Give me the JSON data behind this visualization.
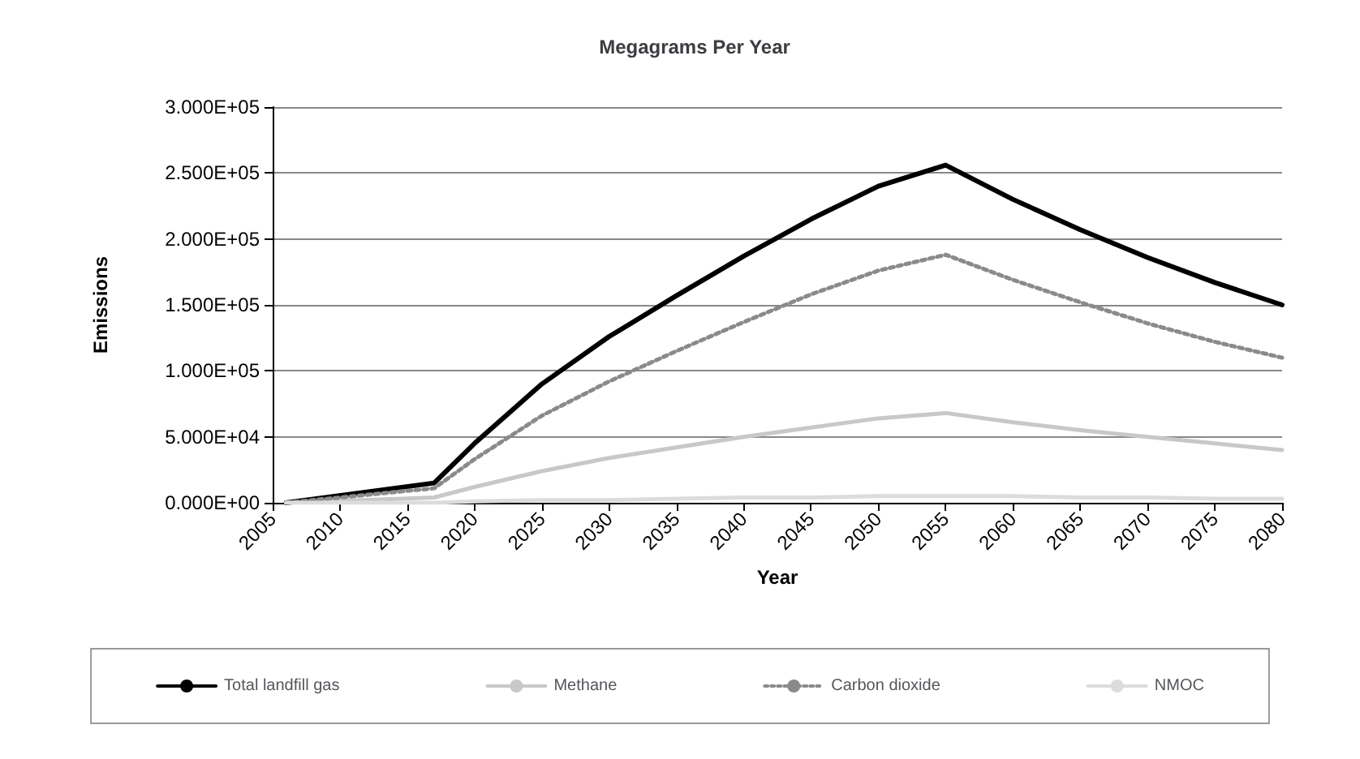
{
  "chart_data": {
    "type": "line",
    "title": "Megagrams Per Year",
    "xlabel": "Year",
    "ylabel": "Emissions",
    "x": [
      2006,
      2017,
      2020,
      2025,
      2030,
      2035,
      2040,
      2045,
      2050,
      2055,
      2060,
      2065,
      2070,
      2075,
      2080
    ],
    "series": [
      {
        "name": "Total landfill gas",
        "color": "#000000",
        "values": [
          0,
          15000,
          45000,
          90000,
          126000,
          157000,
          187000,
          215000,
          240000,
          256000,
          230000,
          207000,
          186000,
          167000,
          150000
        ]
      },
      {
        "name": "Methane",
        "color": "#c8c8c8",
        "values": [
          0,
          4000,
          12000,
          24000,
          34000,
          42000,
          50000,
          57000,
          64000,
          68000,
          61000,
          55000,
          50000,
          45000,
          40000
        ]
      },
      {
        "name": "Carbon dioxide",
        "color": "#8a8a8a",
        "line_style": "dotted",
        "values": [
          0,
          11000,
          33000,
          66000,
          92000,
          115000,
          137000,
          158000,
          176000,
          188000,
          169000,
          152000,
          136000,
          122000,
          110000
        ]
      },
      {
        "name": "NMOC",
        "color": "#dcdcdc",
        "values": [
          0,
          0,
          1000,
          2000,
          2000,
          3000,
          4000,
          4000,
          5000,
          5000,
          5000,
          4000,
          4000,
          3000,
          3000
        ]
      }
    ],
    "xlim": [
      2005,
      2080
    ],
    "xticks": [
      2005,
      2010,
      2015,
      2020,
      2025,
      2030,
      2035,
      2040,
      2045,
      2050,
      2055,
      2060,
      2065,
      2070,
      2075,
      2080
    ],
    "ylim": [
      0,
      300000
    ],
    "yticks": [
      {
        "value": 0,
        "label": "0.000E+00"
      },
      {
        "value": 50000,
        "label": "5.000E+04"
      },
      {
        "value": 100000,
        "label": "1.000E+05"
      },
      {
        "value": 150000,
        "label": "1.500E+05"
      },
      {
        "value": 200000,
        "label": "2.000E+05"
      },
      {
        "value": 250000,
        "label": "2.500E+05"
      },
      {
        "value": 300000,
        "label": "3.000E+05"
      }
    ],
    "grid": "y",
    "legend": "bottom",
    "marker": "none",
    "line_style": "solid"
  }
}
